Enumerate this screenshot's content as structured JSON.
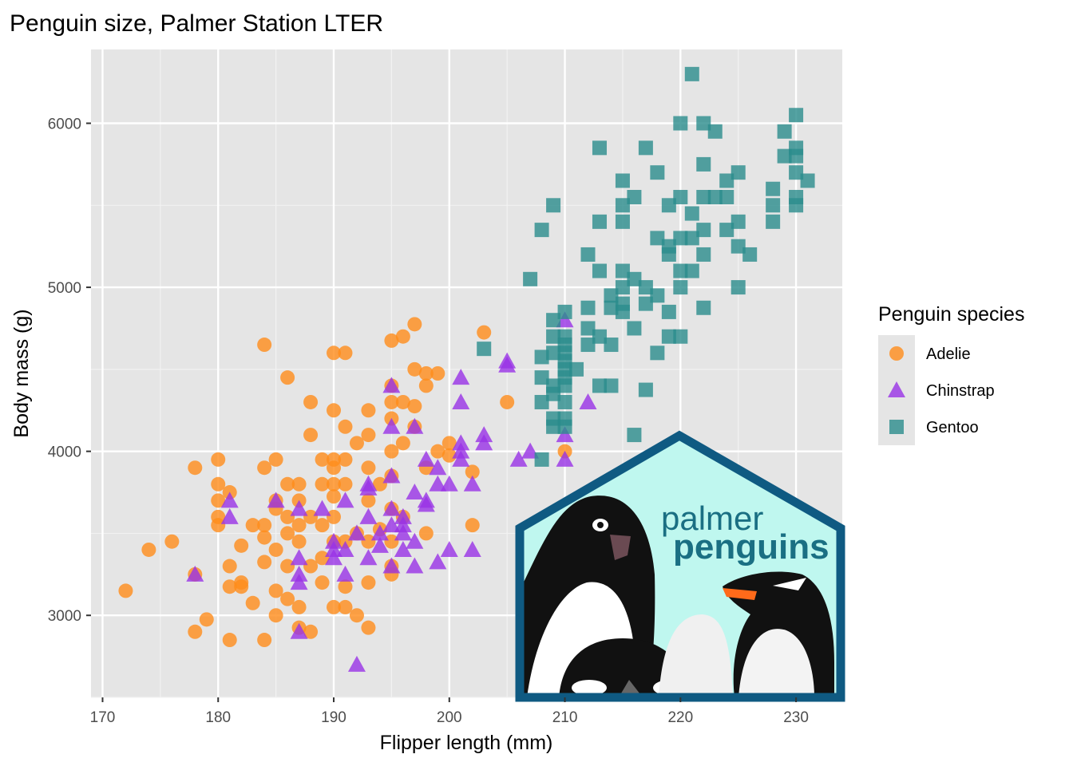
{
  "chart_data": {
    "type": "scatter",
    "title": "Penguin size, Palmer Station LTER",
    "xlabel": "Flipper length (mm)",
    "ylabel": "Body mass (g)",
    "xlim": [
      169,
      234
    ],
    "ylim": [
      2500,
      6450
    ],
    "x_ticks": [
      170,
      180,
      190,
      200,
      210,
      220,
      230
    ],
    "y_ticks": [
      3000,
      4000,
      5000,
      6000
    ],
    "grid": true,
    "legend": {
      "title": "Penguin species",
      "placement": "right",
      "entries": [
        "Adelie",
        "Chinstrap",
        "Gentoo"
      ]
    },
    "series": [
      {
        "name": "Adelie",
        "marker": "circle",
        "color": "#ff8c1a",
        "points": [
          [
            172,
            3150
          ],
          [
            174,
            3400
          ],
          [
            176,
            3450
          ],
          [
            178,
            3900
          ],
          [
            178,
            3250
          ],
          [
            178,
            2900
          ],
          [
            179,
            2975
          ],
          [
            180,
            3950
          ],
          [
            180,
            3800
          ],
          [
            180,
            3700
          ],
          [
            180,
            3600
          ],
          [
            180,
            3550
          ],
          [
            181,
            3750
          ],
          [
            181,
            3300
          ],
          [
            181,
            3175
          ],
          [
            181,
            2850
          ],
          [
            182,
            3425
          ],
          [
            182,
            3200
          ],
          [
            182,
            3175
          ],
          [
            183,
            3550
          ],
          [
            183,
            3075
          ],
          [
            184,
            4650
          ],
          [
            184,
            3900
          ],
          [
            184,
            3550
          ],
          [
            184,
            3475
          ],
          [
            184,
            3325
          ],
          [
            184,
            2850
          ],
          [
            185,
            3950
          ],
          [
            185,
            3700
          ],
          [
            185,
            3650
          ],
          [
            185,
            3400
          ],
          [
            185,
            3150
          ],
          [
            185,
            3000
          ],
          [
            186,
            4450
          ],
          [
            186,
            3800
          ],
          [
            186,
            3600
          ],
          [
            186,
            3500
          ],
          [
            186,
            3300
          ],
          [
            186,
            3100
          ],
          [
            187,
            3800
          ],
          [
            187,
            3700
          ],
          [
            187,
            3550
          ],
          [
            187,
            3450
          ],
          [
            187,
            3050
          ],
          [
            187,
            2925
          ],
          [
            188,
            4300
          ],
          [
            188,
            4100
          ],
          [
            188,
            3600
          ],
          [
            188,
            3300
          ],
          [
            188,
            2900
          ],
          [
            189,
            3950
          ],
          [
            189,
            3800
          ],
          [
            189,
            3550
          ],
          [
            189,
            3350
          ],
          [
            189,
            3200
          ],
          [
            190,
            4600
          ],
          [
            190,
            4250
          ],
          [
            190,
            3950
          ],
          [
            190,
            3900
          ],
          [
            190,
            3800
          ],
          [
            190,
            3725
          ],
          [
            190,
            3600
          ],
          [
            190,
            3450
          ],
          [
            190,
            3050
          ],
          [
            191,
            4600
          ],
          [
            191,
            4150
          ],
          [
            191,
            3950
          ],
          [
            191,
            3800
          ],
          [
            191,
            3450
          ],
          [
            191,
            3175
          ],
          [
            191,
            3050
          ],
          [
            192,
            4050
          ],
          [
            192,
            3500
          ],
          [
            192,
            3000
          ],
          [
            193,
            4250
          ],
          [
            193,
            4100
          ],
          [
            193,
            3900
          ],
          [
            193,
            3700
          ],
          [
            193,
            3450
          ],
          [
            193,
            3200
          ],
          [
            193,
            2925
          ],
          [
            194,
            3800
          ],
          [
            194,
            3525
          ],
          [
            195,
            4675
          ],
          [
            195,
            4400
          ],
          [
            195,
            4300
          ],
          [
            195,
            4200
          ],
          [
            195,
            4000
          ],
          [
            195,
            3850
          ],
          [
            195,
            3650
          ],
          [
            195,
            3450
          ],
          [
            195,
            3300
          ],
          [
            195,
            3250
          ],
          [
            196,
            4700
          ],
          [
            196,
            4300
          ],
          [
            196,
            4050
          ],
          [
            196,
            3600
          ],
          [
            197,
            4775
          ],
          [
            197,
            4500
          ],
          [
            197,
            4275
          ],
          [
            197,
            4150
          ],
          [
            198,
            4475
          ],
          [
            198,
            4400
          ],
          [
            198,
            3900
          ],
          [
            198,
            3500
          ],
          [
            199,
            4000
          ],
          [
            199,
            4475
          ],
          [
            200,
            4050
          ],
          [
            200,
            3975
          ],
          [
            202,
            3875
          ],
          [
            202,
            3550
          ],
          [
            203,
            4725
          ],
          [
            205,
            4300
          ],
          [
            210,
            4000
          ]
        ]
      },
      {
        "name": "Chinstrap",
        "marker": "triangle",
        "color": "#9932e6",
        "points": [
          [
            178,
            3250
          ],
          [
            181,
            3700
          ],
          [
            181,
            3600
          ],
          [
            185,
            3700
          ],
          [
            187,
            3650
          ],
          [
            187,
            3350
          ],
          [
            187,
            3250
          ],
          [
            187,
            3200
          ],
          [
            187,
            2900
          ],
          [
            189,
            3650
          ],
          [
            190,
            3450
          ],
          [
            190,
            3400
          ],
          [
            190,
            3350
          ],
          [
            191,
            3700
          ],
          [
            191,
            3400
          ],
          [
            191,
            3250
          ],
          [
            192,
            3500
          ],
          [
            192,
            2700
          ],
          [
            193,
            3800
          ],
          [
            193,
            3775
          ],
          [
            193,
            3600
          ],
          [
            193,
            3350
          ],
          [
            194,
            3500
          ],
          [
            194,
            3425
          ],
          [
            195,
            4400
          ],
          [
            195,
            4150
          ],
          [
            195,
            3850
          ],
          [
            195,
            3650
          ],
          [
            195,
            3550
          ],
          [
            195,
            3300
          ],
          [
            196,
            3600
          ],
          [
            196,
            3550
          ],
          [
            196,
            3500
          ],
          [
            196,
            3400
          ],
          [
            197,
            4150
          ],
          [
            197,
            3750
          ],
          [
            197,
            3450
          ],
          [
            197,
            3300
          ],
          [
            198,
            3950
          ],
          [
            198,
            3700
          ],
          [
            198,
            3675
          ],
          [
            199,
            3900
          ],
          [
            199,
            3800
          ],
          [
            199,
            3325
          ],
          [
            200,
            3800
          ],
          [
            200,
            3400
          ],
          [
            201,
            4450
          ],
          [
            201,
            4300
          ],
          [
            201,
            4050
          ],
          [
            201,
            4000
          ],
          [
            201,
            3950
          ],
          [
            202,
            3800
          ],
          [
            202,
            3400
          ],
          [
            203,
            4100
          ],
          [
            203,
            4050
          ],
          [
            205,
            4550
          ],
          [
            205,
            4525
          ],
          [
            206,
            3950
          ],
          [
            207,
            4000
          ],
          [
            210,
            4800
          ],
          [
            210,
            4100
          ],
          [
            210,
            3950
          ],
          [
            212,
            4300
          ]
        ]
      },
      {
        "name": "Gentoo",
        "marker": "square",
        "color": "#2a8c8c",
        "points": [
          [
            203,
            4625
          ],
          [
            207,
            5050
          ],
          [
            208,
            4575
          ],
          [
            208,
            4450
          ],
          [
            208,
            4300
          ],
          [
            208,
            3950
          ],
          [
            208,
            5350
          ],
          [
            209,
            5500
          ],
          [
            209,
            4800
          ],
          [
            209,
            4700
          ],
          [
            209,
            4600
          ],
          [
            209,
            4400
          ],
          [
            209,
            4350
          ],
          [
            209,
            4200
          ],
          [
            209,
            4150
          ],
          [
            210,
            4850
          ],
          [
            210,
            4700
          ],
          [
            210,
            4650
          ],
          [
            210,
            4600
          ],
          [
            210,
            4550
          ],
          [
            210,
            4500
          ],
          [
            210,
            4450
          ],
          [
            210,
            4400
          ],
          [
            210,
            4300
          ],
          [
            210,
            4200
          ],
          [
            210,
            4150
          ],
          [
            211,
            4500
          ],
          [
            212,
            5200
          ],
          [
            212,
            4875
          ],
          [
            212,
            4750
          ],
          [
            212,
            4650
          ],
          [
            213,
            5850
          ],
          [
            213,
            5400
          ],
          [
            213,
            5100
          ],
          [
            213,
            4700
          ],
          [
            213,
            4400
          ],
          [
            214,
            4950
          ],
          [
            214,
            4650
          ],
          [
            214,
            4400
          ],
          [
            214,
            4875
          ],
          [
            215,
            5650
          ],
          [
            215,
            5400
          ],
          [
            215,
            5100
          ],
          [
            215,
            5000
          ],
          [
            215,
            4900
          ],
          [
            215,
            4850
          ],
          [
            215,
            5500
          ],
          [
            216,
            5550
          ],
          [
            216,
            5050
          ],
          [
            216,
            4750
          ],
          [
            216,
            4100
          ],
          [
            217,
            5850
          ],
          [
            217,
            5000
          ],
          [
            217,
            4900
          ],
          [
            217,
            4375
          ],
          [
            218,
            5700
          ],
          [
            218,
            5300
          ],
          [
            218,
            4950
          ],
          [
            218,
            4600
          ],
          [
            219,
            5500
          ],
          [
            219,
            5250
          ],
          [
            219,
            5200
          ],
          [
            219,
            4850
          ],
          [
            219,
            4700
          ],
          [
            220,
            6000
          ],
          [
            220,
            5550
          ],
          [
            220,
            5300
          ],
          [
            220,
            5100
          ],
          [
            220,
            5000
          ],
          [
            220,
            4700
          ],
          [
            221,
            6300
          ],
          [
            221,
            5450
          ],
          [
            221,
            5300
          ],
          [
            221,
            5100
          ],
          [
            222,
            6000
          ],
          [
            222,
            5750
          ],
          [
            222,
            5550
          ],
          [
            222,
            5350
          ],
          [
            222,
            5200
          ],
          [
            222,
            4875
          ],
          [
            223,
            5950
          ],
          [
            223,
            5550
          ],
          [
            224,
            5650
          ],
          [
            224,
            5550
          ],
          [
            224,
            5350
          ],
          [
            225,
            5700
          ],
          [
            225,
            5400
          ],
          [
            225,
            5250
          ],
          [
            225,
            5000
          ],
          [
            226,
            5200
          ],
          [
            228,
            5600
          ],
          [
            228,
            5500
          ],
          [
            228,
            5400
          ],
          [
            229,
            5950
          ],
          [
            229,
            5800
          ],
          [
            230,
            6050
          ],
          [
            230,
            5850
          ],
          [
            230,
            5800
          ],
          [
            230,
            5700
          ],
          [
            230,
            5550
          ],
          [
            230,
            5500
          ],
          [
            231,
            5650
          ]
        ]
      }
    ]
  },
  "logo": {
    "line1": "palmer",
    "line2": "penguins",
    "colors": {
      "frame": "#0f5a82",
      "background": "#bff7ef",
      "text": "#1a6f83"
    }
  },
  "colors": {
    "panel": "#e5e5e5",
    "grid_major": "#ffffff",
    "tick_text": "#4d4d4d"
  }
}
